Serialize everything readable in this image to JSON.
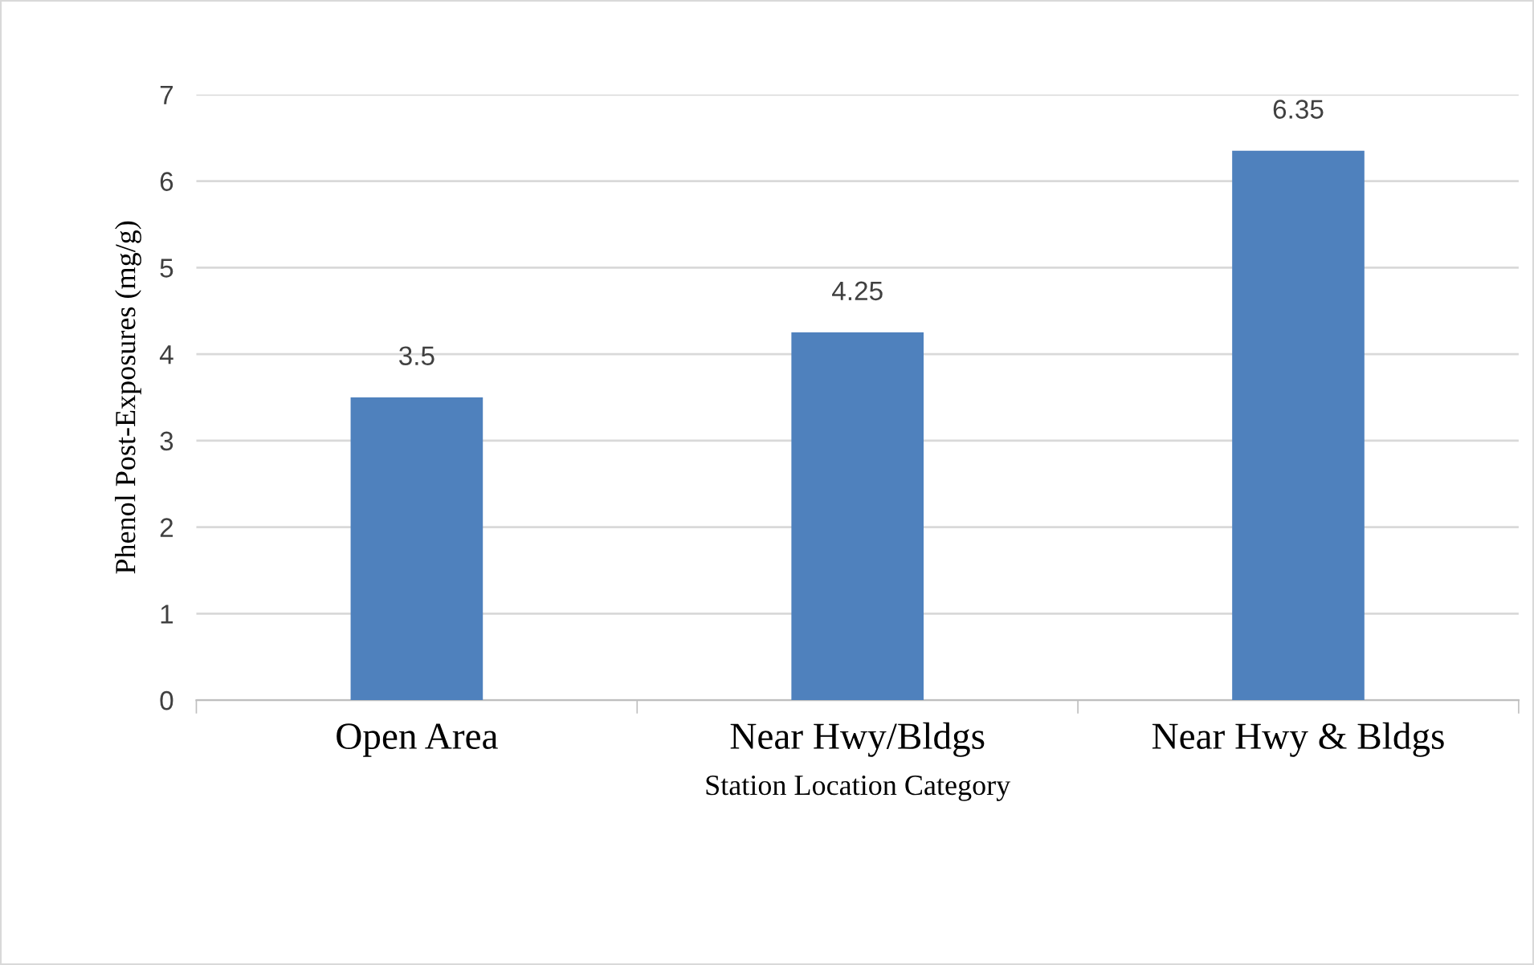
{
  "chart_data": {
    "type": "bar",
    "xlabel": "Station Location Category",
    "ylabel": "Phenol Post-Exposures (mg/g)",
    "categories": [
      "Open Area",
      "Near Hwy/Bldgs",
      "Near Hwy & Bldgs"
    ],
    "values": [
      3.5,
      4.25,
      6.35
    ],
    "color": "#4f81bd",
    "ylim": [
      0,
      7
    ],
    "yticks": [
      0,
      1,
      2,
      3,
      4,
      5,
      6,
      7
    ],
    "grid": "y",
    "data_labels": true
  }
}
